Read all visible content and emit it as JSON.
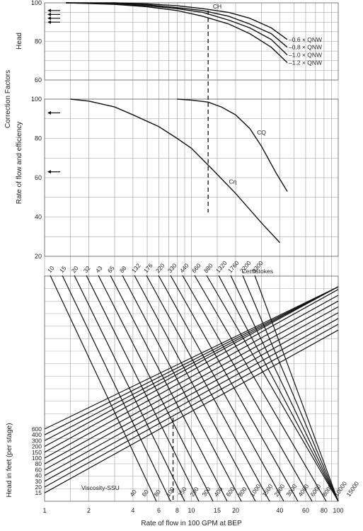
{
  "chart_data": {
    "type": "line",
    "figure": {
      "left_title": "Correction Factors",
      "xlabel": "Rate of flow in 100 GPM at BEP",
      "xscale": "log",
      "xlim": [
        1,
        100
      ],
      "x_ticks": [
        "1",
        "2",
        "4",
        "6",
        "8",
        "10",
        "15",
        "20",
        "40",
        "60",
        "80",
        "100"
      ],
      "x_tick_values": [
        1,
        2,
        4,
        6,
        8,
        10,
        15,
        20,
        40,
        60,
        80,
        100
      ]
    },
    "head_panel": {
      "ylabel": "Head",
      "ylim": [
        60,
        100
      ],
      "y_ticks": [
        "60",
        "80",
        "100"
      ],
      "curve_label": "CH",
      "series": [
        {
          "name": "0.6 × QNW",
          "label": "–0.6 × QNW",
          "x": [
            1.4,
            3,
            5,
            8,
            12,
            18,
            25,
            35,
            45
          ],
          "y": [
            100,
            100,
            99.5,
            98.5,
            97,
            95,
            92,
            87,
            81
          ]
        },
        {
          "name": "0.8 × QNW",
          "label": "–0.8 × QNW",
          "x": [
            1.4,
            3,
            5,
            8,
            12,
            18,
            25,
            35,
            45
          ],
          "y": [
            100,
            99.8,
            99,
            97.5,
            96,
            93,
            89,
            84,
            77
          ]
        },
        {
          "name": "1.0 × QNW",
          "label": "–1.0 × QNW",
          "x": [
            1.4,
            3,
            5,
            8,
            12,
            18,
            25,
            35,
            45
          ],
          "y": [
            100,
            99.5,
            98.5,
            97,
            95,
            91,
            87,
            81,
            73
          ]
        },
        {
          "name": "1.2 × QNW",
          "label": "–1.2 × QNW",
          "x": [
            1.4,
            3,
            5,
            8,
            12,
            18,
            25,
            35,
            45
          ],
          "y": [
            100,
            99.2,
            98,
            96,
            93,
            89,
            84,
            77,
            69
          ]
        }
      ]
    },
    "flow_eff_panel": {
      "ylabel": "Rate of flow and efficiency",
      "ylim": [
        20,
        100
      ],
      "y_ticks": [
        "20",
        "40",
        "60",
        "80",
        "100"
      ],
      "series": [
        {
          "name": "CQ",
          "label": "CQ",
          "x": [
            8,
            10,
            13,
            16,
            20,
            25,
            30,
            38,
            45
          ],
          "y": [
            100,
            99.5,
            98.5,
            96,
            92,
            85,
            76,
            62,
            53
          ]
        },
        {
          "name": "Cη",
          "label": "Cη",
          "x": [
            1.5,
            2,
            3,
            4,
            6,
            8,
            10,
            14,
            20,
            30,
            40
          ],
          "y": [
            100,
            99,
            96,
            92,
            86,
            80,
            75,
            64,
            52,
            37,
            27
          ]
        }
      ]
    },
    "nomogram": {
      "ylabel": "Head in feet (per stage)",
      "head_values": [
        "600",
        "400",
        "300",
        "200",
        "150",
        "100",
        "80",
        "60",
        "40",
        "30",
        "20",
        "15"
      ],
      "viscosity_centistokes_label": "Centistokes",
      "centistokes": [
        "10",
        "15",
        "20",
        "32",
        "43",
        "65",
        "88",
        "132",
        "176",
        "220",
        "330",
        "440",
        "660",
        "880",
        "1320",
        "1760",
        "2200",
        "3300"
      ],
      "viscosity_ssu_label": "Viscosity-SSU",
      "ssu": [
        "40",
        "60",
        "80",
        "100",
        "150",
        "200",
        "300",
        "400",
        "600",
        "800",
        "1000",
        "1500",
        "2000",
        "3000",
        "4000",
        "6000",
        "8000",
        "10000",
        "15000"
      ],
      "example_flow": 7.5
    },
    "arrows": {
      "head_values": [
        96,
        94,
        92,
        90
      ],
      "flow_values": [
        93,
        63
      ]
    },
    "example_line": {
      "x": 13,
      "y_top": 96
    }
  }
}
